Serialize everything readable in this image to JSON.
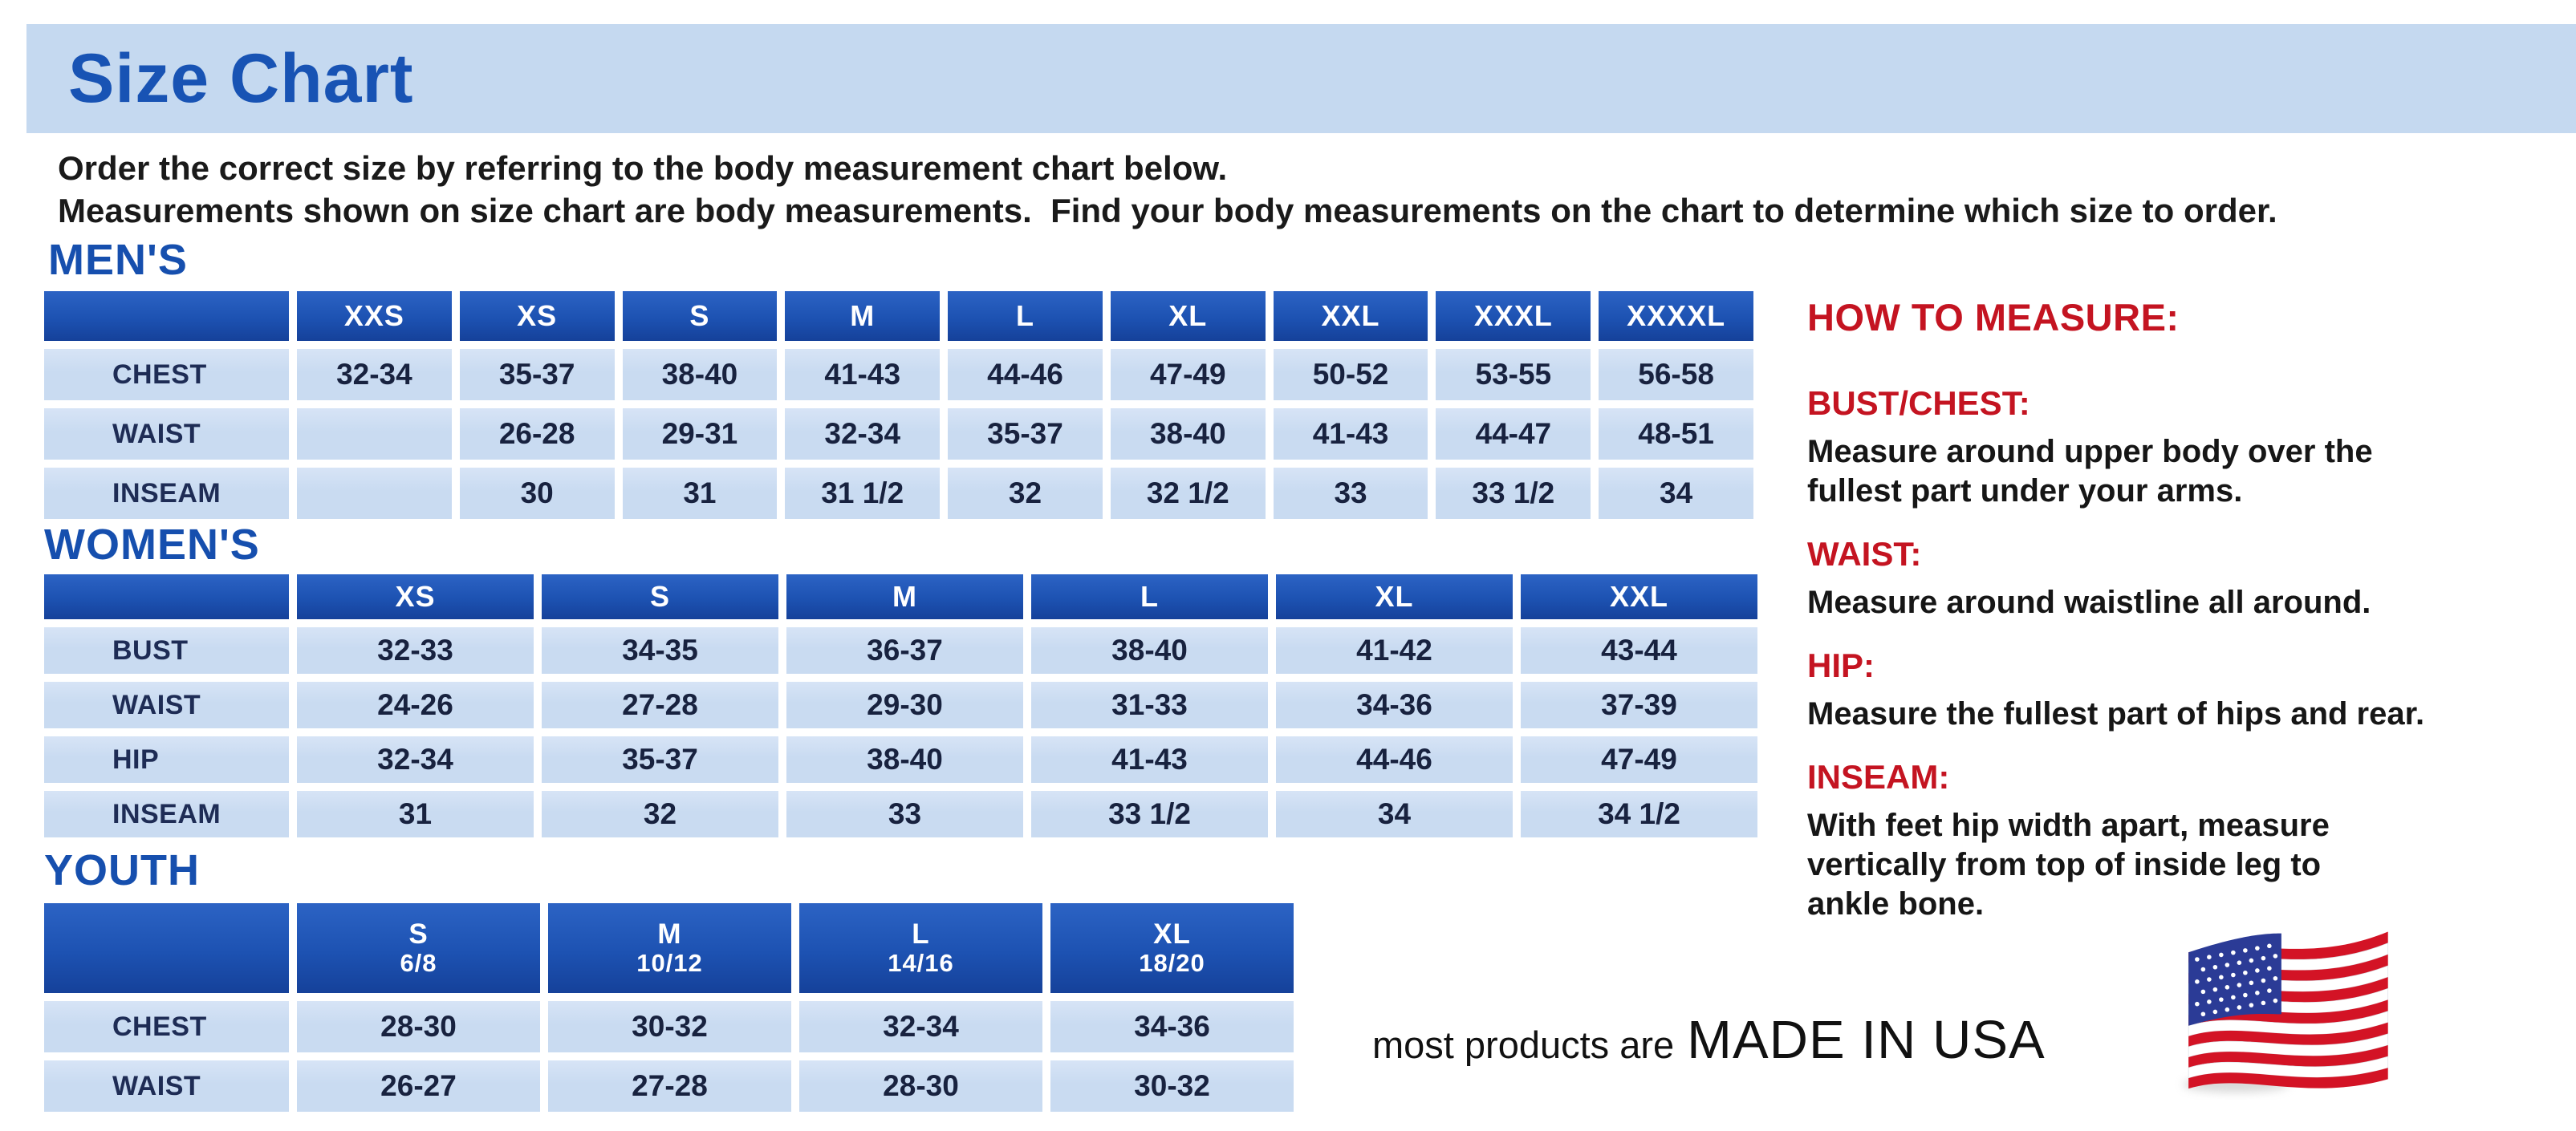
{
  "page": {
    "title": "Size Chart",
    "intro_line1": "Order the correct size by referring to the body measurement chart below.",
    "intro_line2": "Measurements shown on size chart are body measurements.  Find your body measurements on the chart to determine which size to order."
  },
  "colors": {
    "banner_bg": "#c5d9f0",
    "title_blue": "#1853b4",
    "heading_blue": "#164fae",
    "table_header_blue": "#1d52b2",
    "table_header_blue_light": "#2c63c4",
    "cell_bg": "#c9dbf1",
    "cell_bg_light": "#d7e4f6",
    "label_text": "#1e2c55",
    "value_text": "#18223f",
    "red": "#c41421",
    "text_dark": "#1a1a1a",
    "flag_red": "#d31325",
    "flag_blue": "#2b3b96"
  },
  "tables": [
    {
      "id": "mens",
      "heading": "MEN'S",
      "sizes": [
        "XXS",
        "XS",
        "S",
        "M",
        "L",
        "XL",
        "XXL",
        "XXXL",
        "XXXXL"
      ],
      "rows": [
        {
          "label": "CHEST",
          "values": [
            "32-34",
            "35-37",
            "38-40",
            "41-43",
            "44-46",
            "47-49",
            "50-52",
            "53-55",
            "56-58"
          ]
        },
        {
          "label": "WAIST",
          "values": [
            "",
            "26-28",
            "29-31",
            "32-34",
            "35-37",
            "38-40",
            "41-43",
            "44-47",
            "48-51"
          ]
        },
        {
          "label": "INSEAM",
          "values": [
            "",
            "30",
            "31",
            "31 1/2",
            "32",
            "32 1/2",
            "33",
            "33 1/2",
            "34"
          ]
        }
      ]
    },
    {
      "id": "womens",
      "heading": "WOMEN'S",
      "sizes": [
        "XS",
        "S",
        "M",
        "L",
        "XL",
        "XXL"
      ],
      "rows": [
        {
          "label": "BUST",
          "values": [
            "32-33",
            "34-35",
            "36-37",
            "38-40",
            "41-42",
            "43-44"
          ]
        },
        {
          "label": "WAIST",
          "values": [
            "24-26",
            "27-28",
            "29-30",
            "31-33",
            "34-36",
            "37-39"
          ]
        },
        {
          "label": "HIP",
          "values": [
            "32-34",
            "35-37",
            "38-40",
            "41-43",
            "44-46",
            "47-49"
          ]
        },
        {
          "label": "INSEAM",
          "values": [
            "31",
            "32",
            "33",
            "33 1/2",
            "34",
            "34 1/2"
          ]
        }
      ]
    },
    {
      "id": "youth",
      "heading": "YOUTH",
      "sizes": [
        {
          "name": "S",
          "range": "6/8"
        },
        {
          "name": "M",
          "range": "10/12"
        },
        {
          "name": "L",
          "range": "14/16"
        },
        {
          "name": "XL",
          "range": "18/20"
        }
      ],
      "rows": [
        {
          "label": "CHEST",
          "values": [
            "28-30",
            "30-32",
            "32-34",
            "34-36"
          ]
        },
        {
          "label": "WAIST",
          "values": [
            "26-27",
            "27-28",
            "28-30",
            "30-32"
          ]
        }
      ]
    }
  ],
  "how_to_measure": {
    "title": "HOW TO MEASURE:",
    "items": [
      {
        "label": "BUST/CHEST:",
        "lines": [
          "Measure around upper body over the",
          "fullest part under your arms."
        ]
      },
      {
        "label": "WAIST:",
        "lines": [
          "Measure around waistline all around."
        ]
      },
      {
        "label": "HIP:",
        "lines": [
          "Measure the fullest part of hips and rear."
        ]
      },
      {
        "label": "INSEAM:",
        "lines": [
          "With feet hip width apart, measure",
          "vertically from top of inside leg to",
          "ankle bone."
        ]
      }
    ]
  },
  "footer": {
    "prefix": "most products are",
    "emphasis": "MADE IN USA",
    "flag_icon": "usa-flag-icon"
  }
}
